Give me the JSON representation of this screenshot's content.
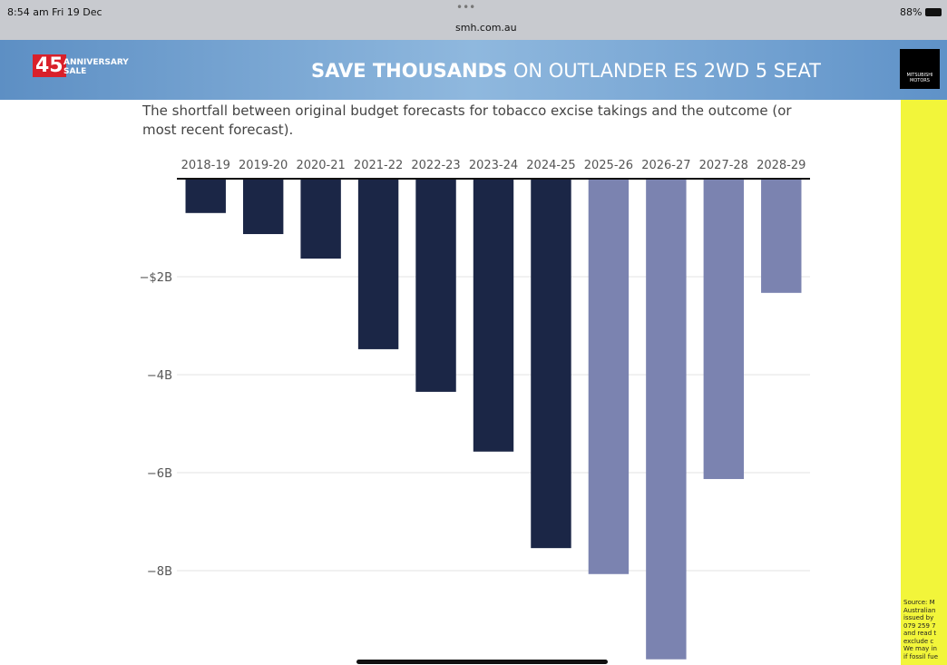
{
  "status_bar": {
    "time": "8:54 am  Fri 19 Dec",
    "url": "smh.com.au",
    "battery": "88%"
  },
  "ad_banner": {
    "badge": "45",
    "badge_text": [
      "ANNIVERSARY",
      "SALE"
    ],
    "headline_bold": "SAVE THOUSANDS",
    "headline_rest": " ON OUTLANDER ES 2WD 5 SEAT",
    "brand": "MITSUBISHI MOTORS"
  },
  "side_ad": {
    "lines": [
      "Source: M",
      "Australian",
      "issued by",
      "079 259 7",
      "and read t",
      "exclude c",
      "We may in",
      "if fossil fue"
    ]
  },
  "caption": "The shortfall between original budget forecasts for tobacco excise takings and the outcome (or most recent forecast).",
  "chart_data": {
    "type": "bar",
    "categories": [
      "2018-19",
      "2019-20",
      "2020-21",
      "2021-22",
      "2022-23",
      "2023-24",
      "2024-25",
      "2025-26",
      "2026-27",
      "2027-28",
      "2028-29"
    ],
    "values": [
      -0.7,
      -1.13,
      -1.63,
      -3.48,
      -4.35,
      -5.57,
      -7.54,
      -8.07,
      -9.81,
      -6.13,
      -2.33
    ],
    "colors": [
      "#1b2646",
      "#1b2646",
      "#1b2646",
      "#1b2646",
      "#1b2646",
      "#1b2646",
      "#1b2646",
      "#7b83b0",
      "#7b83b0",
      "#7b83b0",
      "#7b83b0"
    ],
    "ylim": [
      -9.9,
      0
    ],
    "yticks": [
      {
        "value": -2,
        "label": "−$2B"
      },
      {
        "value": -4,
        "label": "−4B"
      },
      {
        "value": -6,
        "label": "−6B"
      },
      {
        "value": -8,
        "label": "−8B"
      }
    ],
    "grid": true
  }
}
